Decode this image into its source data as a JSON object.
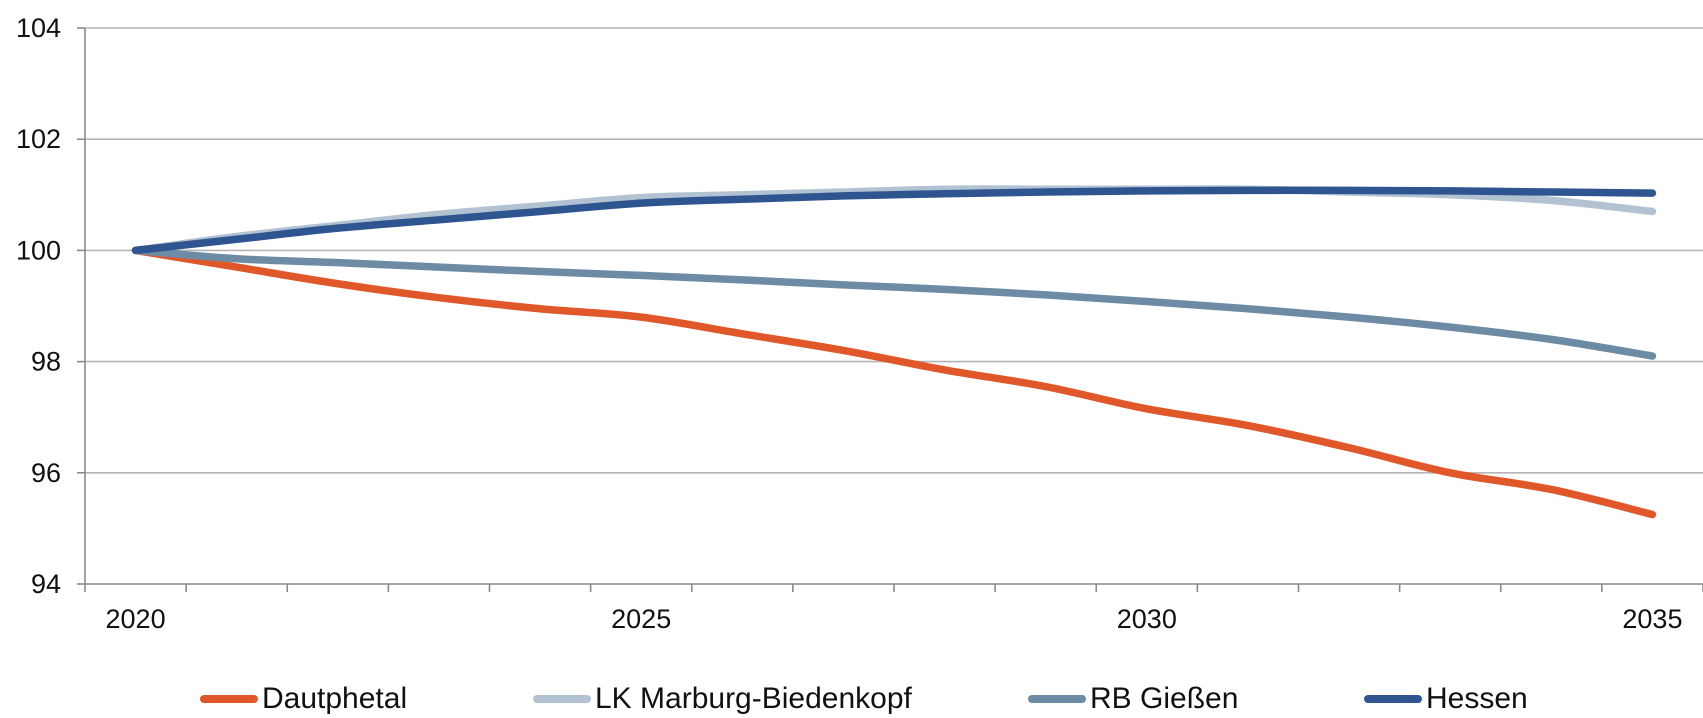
{
  "chart_data": {
    "type": "line",
    "title": "",
    "xlabel": "",
    "ylabel": "",
    "x": [
      2020,
      2021,
      2022,
      2023,
      2024,
      2025,
      2026,
      2027,
      2028,
      2029,
      2030,
      2031,
      2032,
      2033,
      2034,
      2035
    ],
    "x_ticks": [
      "2020",
      "2025",
      "2030",
      "2035"
    ],
    "y_ticks": [
      "94",
      "96",
      "98",
      "100",
      "102",
      "104"
    ],
    "xlim": [
      2019.5,
      2035.5
    ],
    "ylim": [
      94,
      104
    ],
    "grid": "horizontal",
    "legend_position": "bottom",
    "series": [
      {
        "name": "Dautphetal",
        "color": "#e0582a",
        "values": [
          100.0,
          99.7,
          99.4,
          99.15,
          98.95,
          98.8,
          98.5,
          98.2,
          97.85,
          97.55,
          97.15,
          96.85,
          96.45,
          96.0,
          95.7,
          95.25
        ]
      },
      {
        "name": "LK Marburg-Biedenkopf",
        "color": "#b2c2d2",
        "values": [
          100.0,
          100.25,
          100.45,
          100.65,
          100.8,
          100.95,
          101.0,
          101.05,
          101.1,
          101.1,
          101.1,
          101.1,
          101.05,
          101.0,
          100.9,
          100.7
        ]
      },
      {
        "name": "RB Gießen",
        "color": "#6d8ba5",
        "values": [
          100.0,
          99.85,
          99.78,
          99.7,
          99.62,
          99.55,
          99.47,
          99.38,
          99.3,
          99.2,
          99.08,
          98.95,
          98.8,
          98.62,
          98.4,
          98.1
        ]
      },
      {
        "name": "Hessen",
        "color": "#2f5591",
        "values": [
          100.0,
          100.2,
          100.4,
          100.55,
          100.7,
          100.85,
          100.92,
          100.98,
          101.02,
          101.05,
          101.07,
          101.08,
          101.08,
          101.07,
          101.05,
          101.03
        ]
      }
    ]
  }
}
